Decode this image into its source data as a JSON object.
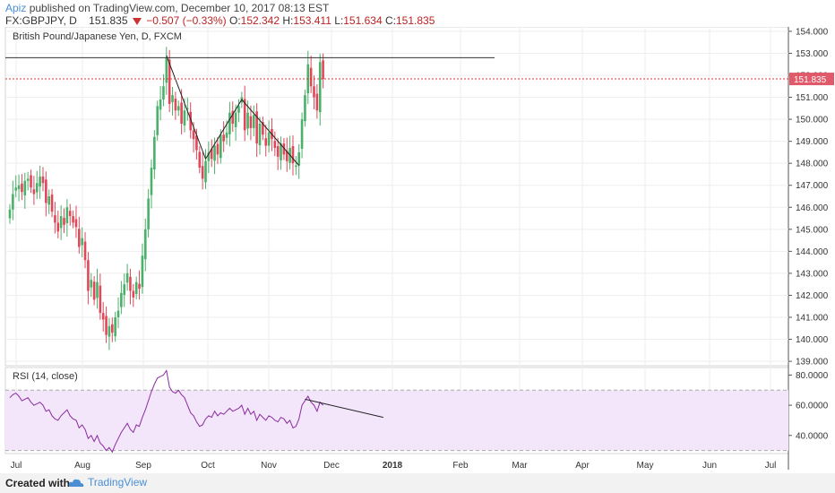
{
  "header": {
    "author": "Apiz",
    "published": "published on TradingView.com, December 10, 2017 08:13 EST",
    "symbol": "FX:GBPJPY, D",
    "last": "151.835",
    "change": "−0.507 (−0.33%)",
    "o_label": "O:",
    "o_val": "152.342",
    "h_label": "H:",
    "h_val": "153.411",
    "l_label": "L:",
    "l_val": "151.634",
    "c_label": "C:",
    "c_val": "151.835"
  },
  "footer": {
    "created": "Created with",
    "brand": "TradingView"
  },
  "chart_data": [
    {
      "type": "candlestick",
      "title": "British Pound/Japanese Yen, D, FXCM",
      "ylim": [
        138.8,
        154.2
      ],
      "y_ticks": [
        "139.000",
        "140.000",
        "141.000",
        "142.000",
        "143.000",
        "144.000",
        "145.000",
        "146.000",
        "147.000",
        "148.000",
        "149.000",
        "150.000",
        "151.000",
        "152.000",
        "153.000",
        "154.000"
      ],
      "last_price_label": "151.835",
      "x_labels": [
        "Jul",
        "Aug",
        "Sep",
        "Oct",
        "Nov",
        "Dec",
        "2018",
        "Feb",
        "Mar",
        "Apr",
        "May",
        "Jun",
        "Jul"
      ],
      "close": [
        145.9,
        146.6,
        146.9,
        147.0,
        146.7,
        147.2,
        147.3,
        146.9,
        146.6,
        147.1,
        147.4,
        147.1,
        146.2,
        146.5,
        145.8,
        145.3,
        144.9,
        145.6,
        145.2,
        146.0,
        145.6,
        145.3,
        145.1,
        144.2,
        144.6,
        143.6,
        142.2,
        142.7,
        141.8,
        142.6,
        141.2,
        140.9,
        140.2,
        140.6,
        140.3,
        141.0,
        141.3,
        142.1,
        142.5,
        143.0,
        142.2,
        141.9,
        142.6,
        142.3,
        143.8,
        145.0,
        146.4,
        147.8,
        149.2,
        150.6,
        150.9,
        151.5,
        152.8,
        150.7,
        151.1,
        150.4,
        150.6,
        149.8,
        150.4,
        150.5,
        149.5,
        149.1,
        148.6,
        147.8,
        147.3,
        148.1,
        148.5,
        148.2,
        148.8,
        148.4,
        149.3,
        149.0,
        149.4,
        150.3,
        149.8,
        150.3,
        150.6,
        151.0,
        149.5,
        150.3,
        149.6,
        150.2,
        148.9,
        149.8,
        149.3,
        148.8,
        149.4,
        149.1,
        148.7,
        148.3,
        148.9,
        148.4,
        148.1,
        148.7,
        148.0,
        147.9,
        148.5,
        150.0,
        151.1,
        152.5,
        151.5,
        151.0,
        150.4,
        152.6,
        151.835
      ],
      "annotations": {
        "resistance": 152.8,
        "trendlines": [
          [
            52,
            152.9,
            65,
            148.2
          ],
          [
            65,
            148.2,
            77,
            150.9
          ],
          [
            77,
            150.9,
            96,
            147.9
          ]
        ]
      }
    },
    {
      "type": "line",
      "title": "RSI (14, close)",
      "ylim": [
        28,
        85
      ],
      "y_ticks": [
        "40.0000",
        "60.0000",
        "80.0000"
      ],
      "band": [
        30,
        70
      ],
      "values": [
        65,
        67,
        68,
        66,
        63,
        64,
        65,
        62,
        60,
        61,
        62,
        60,
        56,
        57,
        53,
        51,
        50,
        53,
        55,
        57,
        53,
        51,
        50,
        45,
        47,
        44,
        38,
        40,
        36,
        40,
        35,
        33,
        30,
        32,
        29,
        34,
        38,
        42,
        45,
        48,
        44,
        42,
        47,
        46,
        52,
        57,
        63,
        69,
        74,
        78,
        79,
        80,
        83,
        72,
        69,
        68,
        70,
        67,
        65,
        60,
        55,
        53,
        49,
        46,
        47,
        51,
        53,
        52,
        56,
        53,
        55,
        54,
        56,
        58,
        56,
        57,
        58,
        60,
        54,
        58,
        54,
        56,
        50,
        54,
        52,
        50,
        53,
        52,
        50,
        49,
        52,
        51,
        48,
        50,
        45,
        46,
        51,
        60,
        63,
        66,
        62,
        60,
        56,
        62,
        60
      ],
      "annotations": {
        "trendline": [
          98,
          64,
          124,
          52
        ]
      }
    }
  ]
}
